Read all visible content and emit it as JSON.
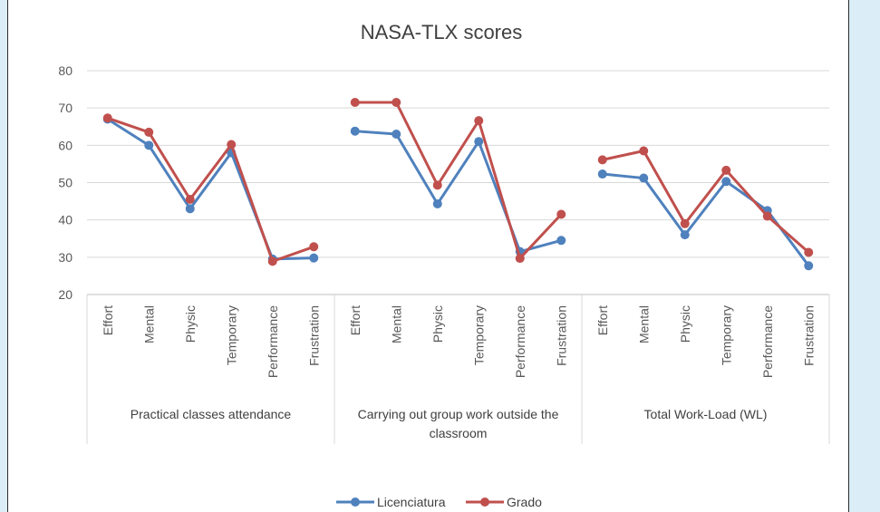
{
  "chart_data": {
    "type": "line",
    "title": "NASA-TLX scores",
    "xlabel": "",
    "ylabel": "",
    "ylim": [
      20,
      80
    ],
    "yticks": [
      20,
      30,
      40,
      50,
      60,
      70,
      80
    ],
    "grid": true,
    "legend_position": "bottom",
    "groups": [
      {
        "label_lines": [
          "Practical classes attendance"
        ],
        "categories": [
          "Effort",
          "Mental",
          "Physic",
          "Temporary",
          "Performance",
          "Frustration"
        ]
      },
      {
        "label_lines": [
          "Carrying out group work outside the",
          "classroom"
        ],
        "categories": [
          "Effort",
          "Mental",
          "Physic",
          "Temporary",
          "Performance",
          "Frustration"
        ]
      },
      {
        "label_lines": [
          "Total Work-Load (WL)"
        ],
        "categories": [
          "Effort",
          "Mental",
          "Physic",
          "Temporary",
          "Performance",
          "Frustration"
        ]
      }
    ],
    "series": [
      {
        "name": "Licenciatura",
        "color": "#4f81bd",
        "values": [
          [
            67.0,
            60.0,
            43.0,
            58.0,
            29.5,
            29.8
          ],
          [
            63.8,
            63.0,
            44.3,
            61.0,
            31.5,
            34.5
          ],
          [
            52.3,
            51.2,
            36.0,
            50.3,
            42.5,
            27.7
          ]
        ]
      },
      {
        "name": "Grado",
        "color": "#c0504d",
        "values": [
          [
            67.3,
            63.5,
            45.5,
            60.2,
            28.9,
            32.8
          ],
          [
            71.5,
            71.5,
            49.3,
            66.6,
            29.7,
            41.5
          ],
          [
            56.1,
            58.5,
            39.0,
            53.3,
            41.0,
            31.3
          ]
        ]
      }
    ]
  }
}
